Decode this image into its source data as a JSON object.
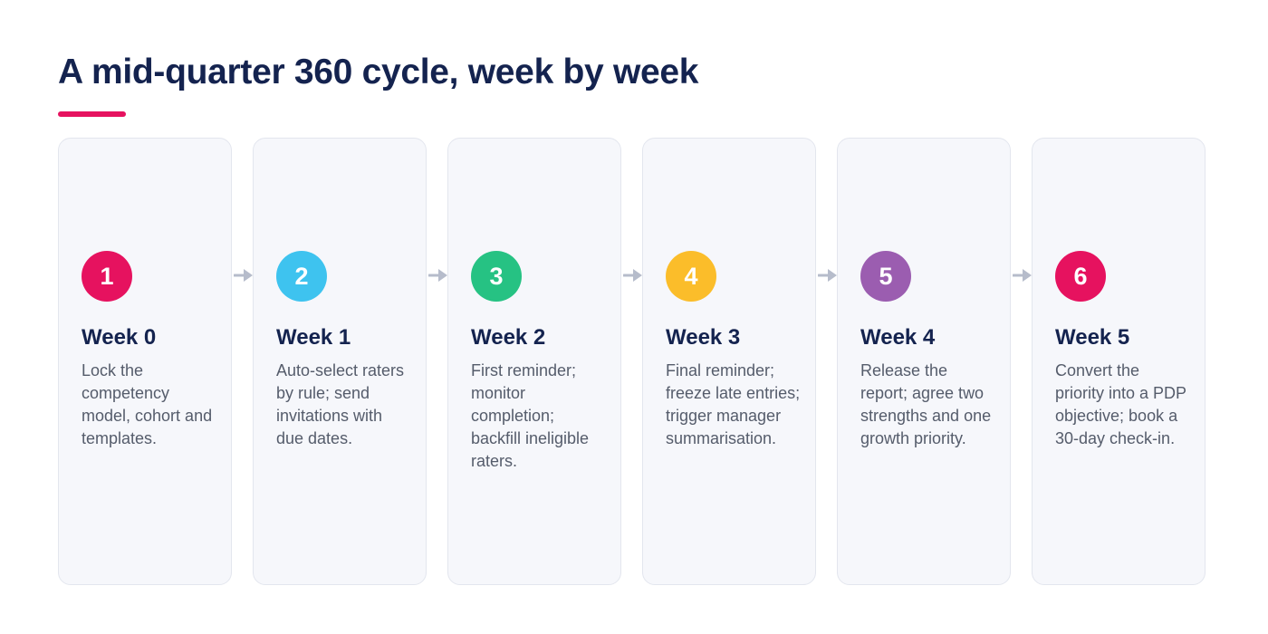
{
  "title": "A mid-quarter 360 cycle, week by week",
  "steps": [
    {
      "number": "1",
      "week": "Week 0",
      "description": "Lock the competency model, cohort and templates.",
      "color": "#e6125f"
    },
    {
      "number": "2",
      "week": "Week 1",
      "description": "Auto-select raters by rule; send invitations with due dates.",
      "color": "#3ec3ef"
    },
    {
      "number": "3",
      "week": "Week 2",
      "description": "First reminder; monitor completion; backfill ineligible raters.",
      "color": "#26c283"
    },
    {
      "number": "4",
      "week": "Week 3",
      "description": "Final reminder; freeze late entries; trigger manager summarisation.",
      "color": "#fbbd2a"
    },
    {
      "number": "5",
      "week": "Week 4",
      "description": "Release the report; agree two strengths and one growth priority.",
      "color": "#9b5db0"
    },
    {
      "number": "6",
      "week": "Week 5",
      "description": "Convert the priority into a PDP objective; book a 30-day check-in.",
      "color": "#e6125f"
    }
  ],
  "colors": {
    "title": "#14234f",
    "accent": "#e6125f",
    "card_bg": "#f6f7fb",
    "card_border": "#e3e6ee",
    "arrow": "#b6bccb",
    "body_text": "#555c6b"
  },
  "icons": {
    "connector": "arrow-right-icon"
  }
}
